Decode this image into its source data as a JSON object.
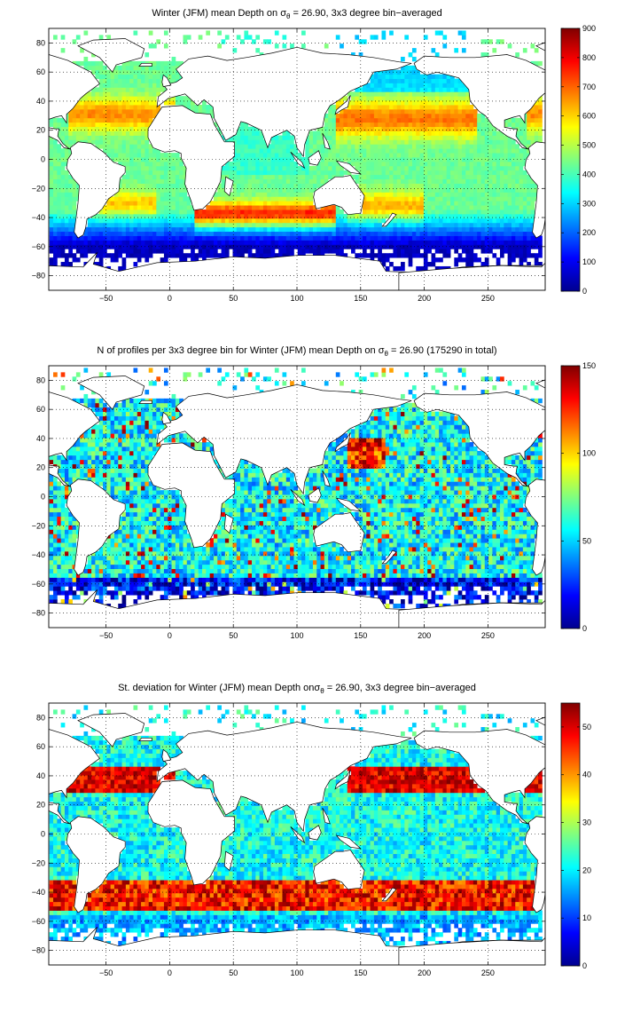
{
  "panels": [
    {
      "title_pre": "Winter (JFM) mean Depth on ",
      "sigma": "σ",
      "sub": "θ",
      "title_post": " = 26.90, 3x3 degree bin−averaged",
      "colorbar_ticks": [
        "0",
        "100",
        "200",
        "300",
        "400",
        "500",
        "600",
        "700",
        "800",
        "900"
      ]
    },
    {
      "title_pre": "N of profiles per 3x3 degree bin for Winter (JFM) mean Depth on ",
      "sigma": "σ",
      "sub": "θ",
      "title_post": " = 26.90 (175290 in total)",
      "colorbar_ticks": [
        "0",
        "50",
        "100",
        "150"
      ]
    },
    {
      "title_pre": "St. deviation for Winter (JFM) mean Depth on",
      "sigma": "σ",
      "sub": "θ",
      "title_post": " = 26.90, 3x3 degree bin−averaged",
      "colorbar_ticks": [
        "0",
        "10",
        "20",
        "30",
        "40",
        "50"
      ]
    }
  ],
  "x_ticks": [
    "−50",
    "0",
    "50",
    "100",
    "150",
    "200",
    "250"
  ],
  "y_ticks": [
    "80",
    "60",
    "40",
    "20",
    "0",
    "−20",
    "−40",
    "−60",
    "−80"
  ],
  "chart_data": [
    {
      "type": "heatmap",
      "title": "Winter (JFM) mean Depth on σθ = 26.90, 3x3 degree bin−averaged",
      "xlim": [
        -95,
        295
      ],
      "ylim": [
        -90,
        90
      ],
      "grid": true,
      "colorbar": {
        "colormap": "jet",
        "range": [
          0,
          900
        ],
        "ticks": [
          0,
          100,
          200,
          300,
          400,
          500,
          600,
          700,
          800,
          900
        ]
      },
      "bin_size_deg": 3
    },
    {
      "type": "heatmap",
      "title": "N of profiles per 3x3 degree bin for Winter (JFM) mean Depth on σθ = 26.90 (175290 in total)",
      "total_profiles": 175290,
      "xlim": [
        -95,
        295
      ],
      "ylim": [
        -90,
        90
      ],
      "grid": true,
      "colorbar": {
        "colormap": "jet",
        "range": [
          0,
          150
        ],
        "ticks": [
          0,
          50,
          100,
          150
        ]
      },
      "bin_size_deg": 3
    },
    {
      "type": "heatmap",
      "title": "St. deviation for Winter (JFM) mean Depth on σθ = 26.90, 3x3 degree bin−averaged",
      "xlim": [
        -95,
        295
      ],
      "ylim": [
        -90,
        90
      ],
      "grid": true,
      "colorbar": {
        "colormap": "jet",
        "range": [
          0,
          55
        ],
        "ticks": [
          0,
          10,
          20,
          30,
          40,
          50
        ]
      },
      "bin_size_deg": 3
    }
  ]
}
